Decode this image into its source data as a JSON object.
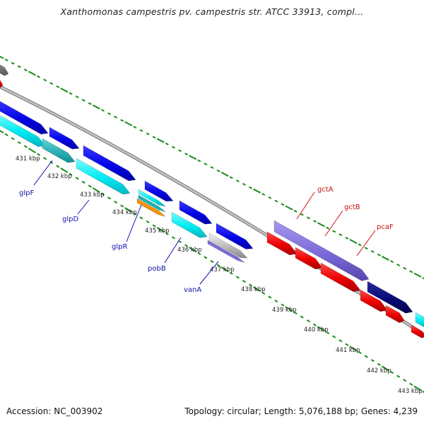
{
  "title": "Xanthomonas campestris pv. campestris str. ATCC 33913, compl...",
  "footer": {
    "accession": "Accession: NC_003902",
    "summary": "Topology: circular; Length: 5,076,188 bp; Genes: 4,239"
  },
  "ticks": [
    "431 kbp",
    "432 kbp",
    "433 kbp",
    "434 kbp",
    "435 kbp",
    "436 kbp",
    "437 kbp",
    "438 kbp",
    "439 kbp",
    "440 kbp",
    "441 kbp",
    "442 kbp",
    "443 kbp"
  ],
  "gene_labels_reverse": [
    "glpF",
    "glpD",
    "glpR",
    "pobB",
    "vanA"
  ],
  "gene_labels_forward": [
    "gctA",
    "gctB",
    "pcaF"
  ],
  "colors": {
    "gene_blue": "#0a0af0",
    "gene_cyan": "#00e8f0",
    "gene_red": "#f00000",
    "gene_navy": "#0a0a78",
    "gene_violet": "#7b6bd9",
    "gene_orange": "#f5900a",
    "gene_teal": "#17b5b5",
    "backbone": "#909090",
    "tick_green": "#1a8a1a",
    "label_blue": "#1111aa",
    "label_red": "#cc1111"
  }
}
